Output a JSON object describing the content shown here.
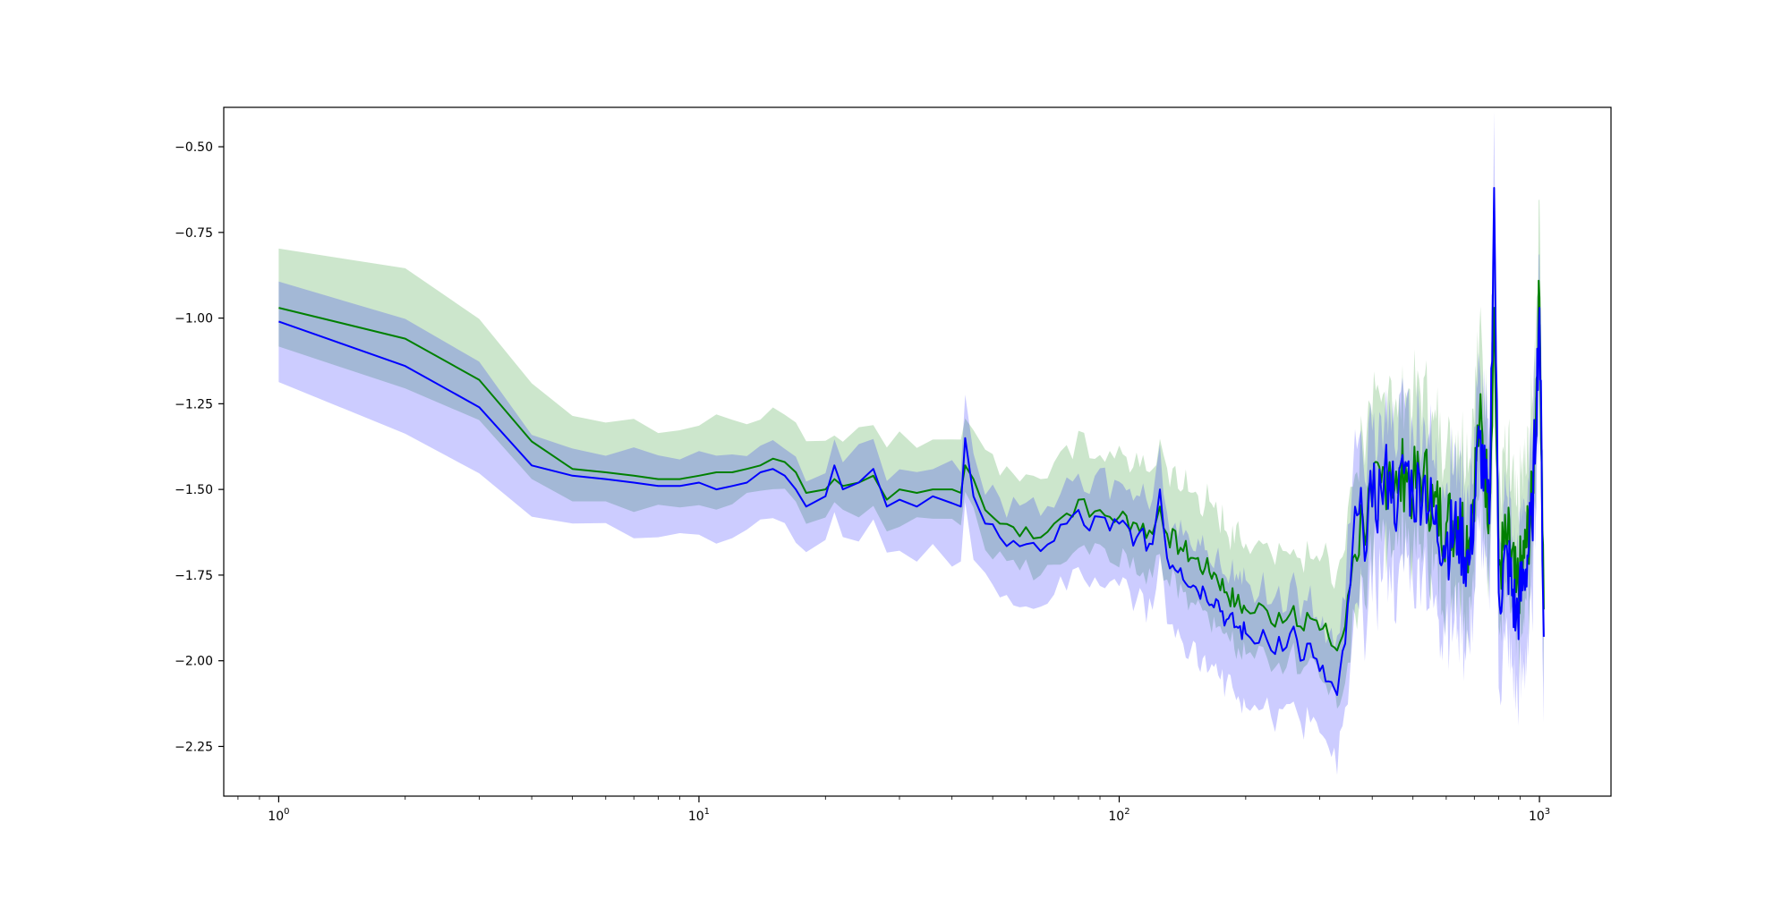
{
  "chart_data": {
    "type": "line",
    "title": "",
    "xlabel": "",
    "ylabel": "",
    "xscale": "log",
    "xlim": [
      0.74,
      1480
    ],
    "ylim": [
      -2.395,
      -0.385
    ],
    "grid": false,
    "legend": "none",
    "x_ticks": [
      {
        "value": 1,
        "base": "10",
        "exp": "0"
      },
      {
        "value": 10,
        "base": "10",
        "exp": "1"
      },
      {
        "value": 100,
        "base": "10",
        "exp": "2"
      },
      {
        "value": 1000,
        "base": "10",
        "exp": "3"
      }
    ],
    "y_ticks": [
      {
        "value": -0.5,
        "label": "−0.50"
      },
      {
        "value": -0.75,
        "label": "−0.75"
      },
      {
        "value": -1.0,
        "label": "−1.00"
      },
      {
        "value": -1.25,
        "label": "−1.25"
      },
      {
        "value": -1.5,
        "label": "−1.50"
      },
      {
        "value": -1.75,
        "label": "−1.75"
      },
      {
        "value": -2.0,
        "label": "−2.00"
      },
      {
        "value": -2.25,
        "label": "−2.25"
      }
    ],
    "series": [
      {
        "color": "#008000",
        "band_color": "#008000",
        "band_opacity": 0.2,
        "x": [
          1,
          2,
          3,
          4,
          5,
          6,
          7,
          8,
          9,
          10,
          11,
          12,
          13,
          14,
          15,
          16,
          17,
          18,
          20,
          21,
          22,
          24,
          26,
          28,
          30,
          33,
          36,
          40,
          42,
          43,
          45,
          48,
          52,
          56,
          60,
          65,
          70,
          75,
          80,
          85,
          90,
          95,
          100,
          110,
          120,
          125,
          130,
          140,
          150,
          160,
          170,
          180,
          190,
          200,
          210,
          220,
          230,
          240,
          250,
          260,
          270,
          280,
          290,
          300,
          315,
          330,
          345,
          360,
          380,
          400,
          420,
          440,
          460,
          480,
          500,
          530,
          560,
          600,
          640,
          680,
          720,
          760,
          780,
          800,
          840,
          880,
          920,
          960,
          1000,
          1024
        ],
        "y": [
          -0.97,
          -1.06,
          -1.18,
          -1.36,
          -1.44,
          -1.45,
          -1.46,
          -1.47,
          -1.47,
          -1.46,
          -1.45,
          -1.45,
          -1.44,
          -1.43,
          -1.41,
          -1.42,
          -1.45,
          -1.51,
          -1.5,
          -1.47,
          -1.49,
          -1.48,
          -1.46,
          -1.53,
          -1.5,
          -1.51,
          -1.5,
          -1.5,
          -1.51,
          -1.43,
          -1.47,
          -1.56,
          -1.6,
          -1.61,
          -1.61,
          -1.64,
          -1.6,
          -1.57,
          -1.53,
          -1.58,
          -1.56,
          -1.58,
          -1.58,
          -1.6,
          -1.63,
          -1.55,
          -1.63,
          -1.67,
          -1.7,
          -1.73,
          -1.75,
          -1.8,
          -1.83,
          -1.85,
          -1.86,
          -1.84,
          -1.89,
          -1.86,
          -1.88,
          -1.84,
          -1.9,
          -1.86,
          -1.88,
          -1.91,
          -1.93,
          -1.97,
          -1.9,
          -1.7,
          -1.58,
          -1.55,
          -1.48,
          -1.42,
          -1.51,
          -1.43,
          -1.5,
          -1.45,
          -1.55,
          -1.6,
          -1.58,
          -1.65,
          -1.3,
          -1.55,
          -0.97,
          -1.72,
          -1.65,
          -1.8,
          -1.7,
          -1.55,
          -0.94,
          -1.85
        ]
      },
      {
        "color": "#0000ff",
        "band_color": "#0000ff",
        "band_opacity": 0.2,
        "x": [
          1,
          2,
          3,
          4,
          5,
          6,
          7,
          8,
          9,
          10,
          11,
          12,
          13,
          14,
          15,
          16,
          17,
          18,
          20,
          21,
          22,
          24,
          26,
          28,
          30,
          33,
          36,
          40,
          42,
          43,
          45,
          48,
          52,
          56,
          60,
          65,
          70,
          75,
          80,
          85,
          90,
          95,
          100,
          110,
          120,
          125,
          130,
          140,
          150,
          160,
          170,
          180,
          190,
          200,
          210,
          220,
          230,
          240,
          250,
          260,
          270,
          280,
          290,
          300,
          315,
          330,
          345,
          360,
          380,
          400,
          420,
          440,
          460,
          480,
          500,
          530,
          560,
          600,
          640,
          680,
          720,
          760,
          780,
          800,
          840,
          880,
          920,
          960,
          1000,
          1024
        ],
        "y": [
          -1.01,
          -1.14,
          -1.26,
          -1.43,
          -1.46,
          -1.47,
          -1.48,
          -1.49,
          -1.49,
          -1.48,
          -1.5,
          -1.49,
          -1.48,
          -1.45,
          -1.44,
          -1.46,
          -1.5,
          -1.55,
          -1.52,
          -1.43,
          -1.5,
          -1.48,
          -1.44,
          -1.55,
          -1.53,
          -1.55,
          -1.52,
          -1.54,
          -1.55,
          -1.35,
          -1.52,
          -1.6,
          -1.64,
          -1.65,
          -1.66,
          -1.68,
          -1.65,
          -1.6,
          -1.56,
          -1.62,
          -1.58,
          -1.62,
          -1.6,
          -1.64,
          -1.66,
          -1.5,
          -1.7,
          -1.73,
          -1.78,
          -1.8,
          -1.82,
          -1.88,
          -1.9,
          -1.92,
          -1.95,
          -1.91,
          -1.97,
          -1.93,
          -1.96,
          -1.9,
          -2.0,
          -1.95,
          -1.99,
          -2.03,
          -2.06,
          -2.1,
          -1.95,
          -1.65,
          -1.6,
          -1.55,
          -1.5,
          -1.45,
          -1.55,
          -1.42,
          -1.52,
          -1.47,
          -1.6,
          -1.65,
          -1.62,
          -1.72,
          -1.35,
          -1.6,
          -0.62,
          -1.8,
          -1.7,
          -1.88,
          -1.75,
          -1.6,
          -0.97,
          -1.93
        ]
      }
    ]
  }
}
